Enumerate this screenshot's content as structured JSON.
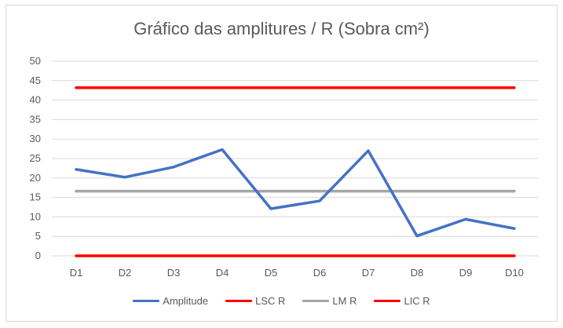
{
  "chart_data": {
    "type": "line",
    "title": "Gráfico das amplitures / R (Sobra cm²)",
    "categories": [
      "D1",
      "D2",
      "D3",
      "D4",
      "D5",
      "D6",
      "D7",
      "D8",
      "D9",
      "D10"
    ],
    "ylim": [
      0,
      50
    ],
    "yticks": [
      0,
      5,
      10,
      15,
      20,
      25,
      30,
      35,
      40,
      45,
      50
    ],
    "grid": true,
    "legend_position": "bottom",
    "series": [
      {
        "name": "Amplitude",
        "color": "#4472c4",
        "values": [
          22.2,
          20.2,
          22.8,
          27.3,
          12.1,
          14.1,
          27.0,
          5.1,
          9.4,
          7.0
        ]
      },
      {
        "name": "LSC R",
        "color": "#ff0000",
        "values": [
          43.2,
          43.2,
          43.2,
          43.2,
          43.2,
          43.2,
          43.2,
          43.2,
          43.2,
          43.2
        ]
      },
      {
        "name": "LM R",
        "color": "#a5a5a5",
        "values": [
          16.6,
          16.6,
          16.6,
          16.6,
          16.6,
          16.6,
          16.6,
          16.6,
          16.6,
          16.6
        ]
      },
      {
        "name": "LIC R",
        "color": "#ff0000",
        "values": [
          0,
          0,
          0,
          0,
          0,
          0,
          0,
          0,
          0,
          0
        ]
      }
    ]
  }
}
